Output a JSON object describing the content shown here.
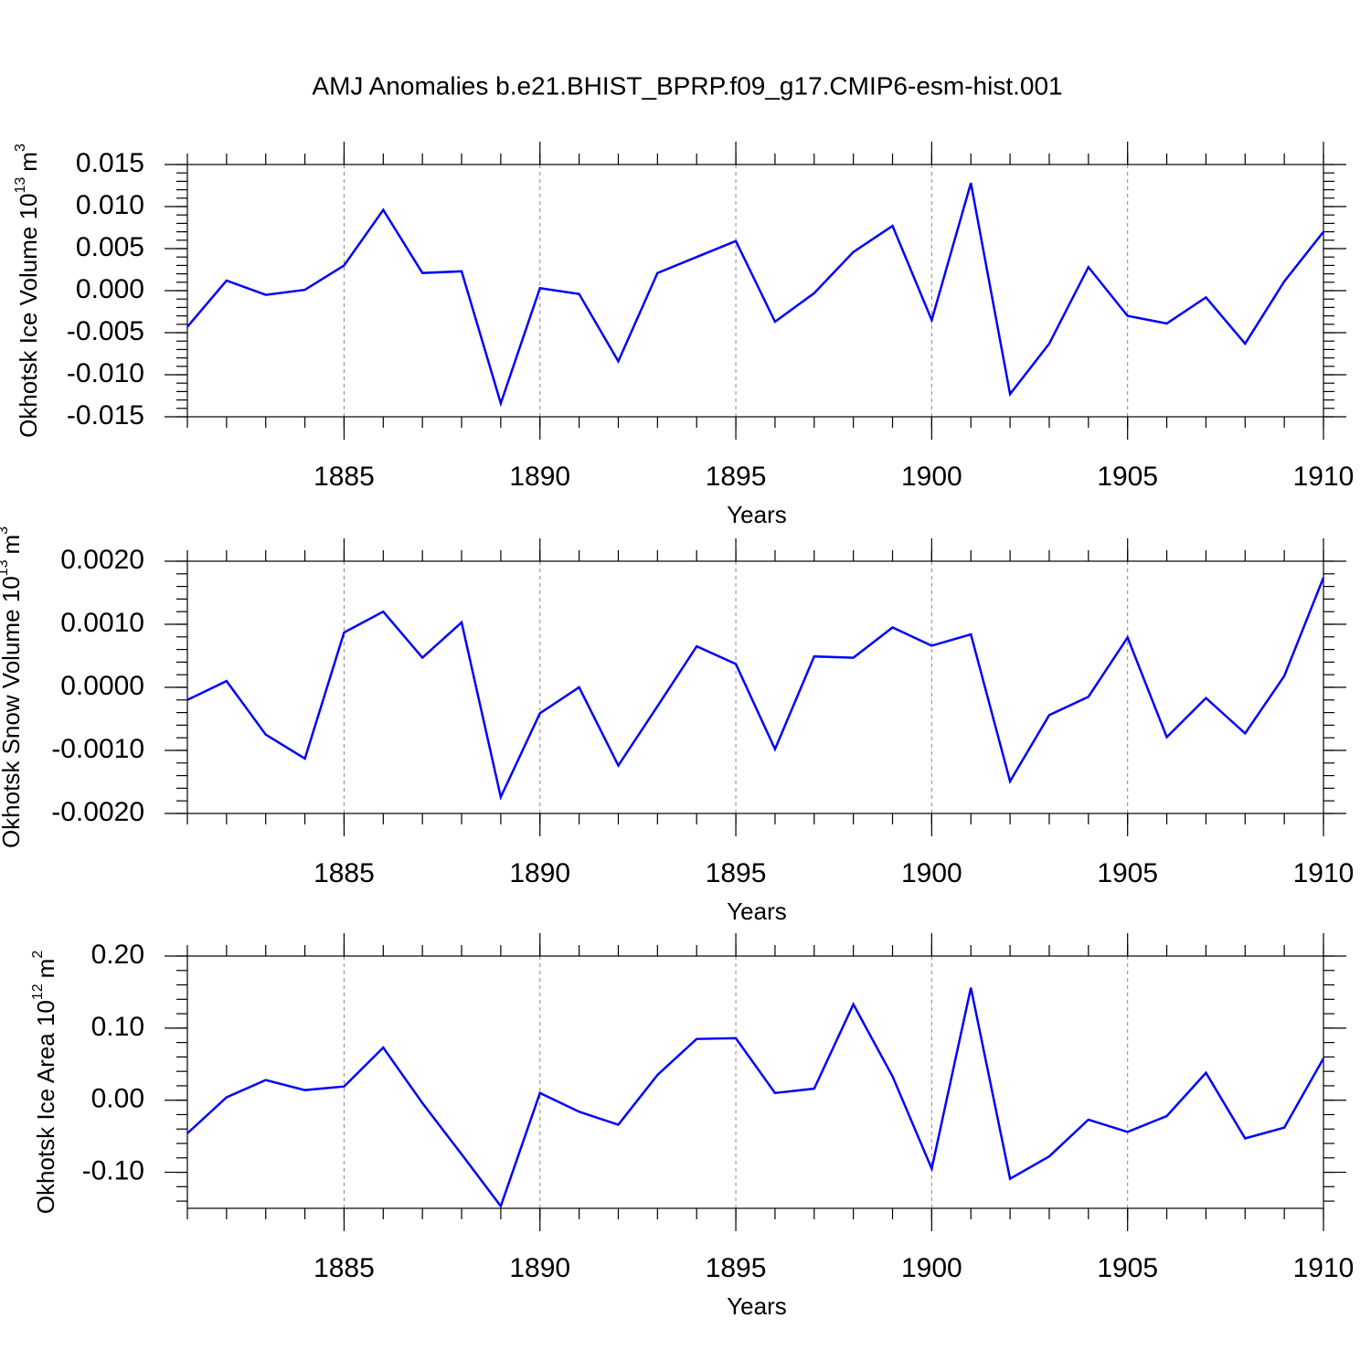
{
  "title": "AMJ Anomalies b.e21.BHIST_BPRP.f09_g17.CMIP6-esm-hist.001",
  "chart_data": [
    {
      "type": "line",
      "ylabel": "Okhotsk Ice Volume 10",
      "ylabel_exp": "13",
      "ylabel_unit": "m",
      "ylabel_unit_exp": "3",
      "xlabel": "Years",
      "x": [
        1881,
        1882,
        1883,
        1884,
        1885,
        1886,
        1887,
        1888,
        1889,
        1890,
        1891,
        1892,
        1893,
        1894,
        1895,
        1896,
        1897,
        1898,
        1899,
        1900,
        1901,
        1902,
        1903,
        1904,
        1905,
        1906,
        1907,
        1908,
        1909,
        1910
      ],
      "series": [
        {
          "color": "#0000ff",
          "values": [
            -0.0043,
            0.0012,
            -0.0005,
            0.0001,
            0.003,
            0.0096,
            0.0021,
            0.0023,
            -0.0134,
            0.0003,
            -0.0004,
            -0.0084,
            0.0021,
            0.004,
            0.0059,
            -0.0037,
            -0.0003,
            0.0046,
            0.0077,
            -0.0035,
            0.0128,
            -0.0123,
            -0.0063,
            0.0028,
            -0.003,
            -0.0039,
            -0.0008,
            -0.0063,
            0.0011,
            0.007
          ]
        }
      ],
      "xlim": [
        1881,
        1910
      ],
      "xticks": [
        1885,
        1890,
        1895,
        1900,
        1905,
        1910
      ],
      "ylim": [
        -0.015,
        0.015
      ],
      "yticks": [
        0.015,
        {
          "value": 0.01,
          "label": "0.010"
        },
        0.005,
        {
          "value": 0,
          "label": "0.000"
        },
        -0.005,
        {
          "value": -0.01,
          "label": "-0.010"
        },
        -0.015
      ],
      "xgrid": true
    },
    {
      "type": "line",
      "ylabel": "Okhotsk Snow Volume 10",
      "ylabel_exp": "13",
      "ylabel_unit": "m",
      "ylabel_unit_exp": "3",
      "xlabel": "Years",
      "x": [
        1881,
        1882,
        1883,
        1884,
        1885,
        1886,
        1887,
        1888,
        1889,
        1890,
        1891,
        1892,
        1893,
        1894,
        1895,
        1896,
        1897,
        1898,
        1899,
        1900,
        1901,
        1902,
        1903,
        1904,
        1905,
        1906,
        1907,
        1908,
        1909,
        1910
      ],
      "series": [
        {
          "color": "#0000ff",
          "values": [
            -0.0002,
            0.0001,
            -0.00075,
            -0.00113,
            0.00087,
            0.0012,
            0.00047,
            0.00103,
            -0.00174,
            -0.00041,
            0.0,
            -0.00124,
            -0.0003,
            0.00065,
            0.00037,
            -0.00098,
            0.00049,
            0.00047,
            0.00095,
            0.00066,
            0.00084,
            -0.00149,
            -0.00044,
            -0.00015,
            0.00079,
            -0.00079,
            -0.00017,
            -0.00073,
            0.00018,
            0.00174
          ]
        }
      ],
      "xlim": [
        1881,
        1910
      ],
      "xticks": [
        1885,
        1890,
        1895,
        1900,
        1905,
        1910
      ],
      "ylim": [
        -0.002,
        0.002
      ],
      "yticks": [
        {
          "value": 0.002,
          "label": "0.0020"
        },
        {
          "value": 0.001,
          "label": "0.0010"
        },
        {
          "value": 0,
          "label": "0.0000"
        },
        {
          "value": -0.001,
          "label": "-0.0010"
        },
        {
          "value": -0.002,
          "label": "-0.0020"
        }
      ],
      "xgrid": true
    },
    {
      "type": "line",
      "ylabel": "Okhotsk Ice Area 10",
      "ylabel_exp": "12",
      "ylabel_unit": "m",
      "ylabel_unit_exp": "2",
      "xlabel": "Years",
      "x": [
        1881,
        1882,
        1883,
        1884,
        1885,
        1886,
        1887,
        1888,
        1889,
        1890,
        1891,
        1892,
        1893,
        1894,
        1895,
        1896,
        1897,
        1898,
        1899,
        1900,
        1901,
        1902,
        1903,
        1904,
        1905,
        1906,
        1907,
        1908,
        1909,
        1910
      ],
      "series": [
        {
          "color": "#0000ff",
          "values": [
            -0.046,
            0.004,
            0.028,
            0.014,
            0.019,
            0.073,
            -0.004,
            -0.075,
            -0.147,
            0.01,
            -0.016,
            -0.034,
            0.035,
            0.085,
            0.086,
            0.01,
            0.016,
            0.133,
            0.033,
            -0.095,
            0.156,
            -0.109,
            -0.078,
            -0.027,
            -0.044,
            -0.022,
            0.038,
            -0.053,
            -0.038,
            0.058
          ]
        }
      ],
      "xlim": [
        1881,
        1910
      ],
      "xticks": [
        1885,
        1890,
        1895,
        1900,
        1905,
        1910
      ],
      "ylim": [
        -0.15,
        0.2
      ],
      "yticks": [
        {
          "value": 0.2,
          "label": "0.20"
        },
        {
          "value": 0.1,
          "label": "0.10"
        },
        {
          "value": 0,
          "label": "0.00"
        },
        {
          "value": -0.1,
          "label": "-0.10"
        }
      ],
      "xgrid": true
    }
  ]
}
